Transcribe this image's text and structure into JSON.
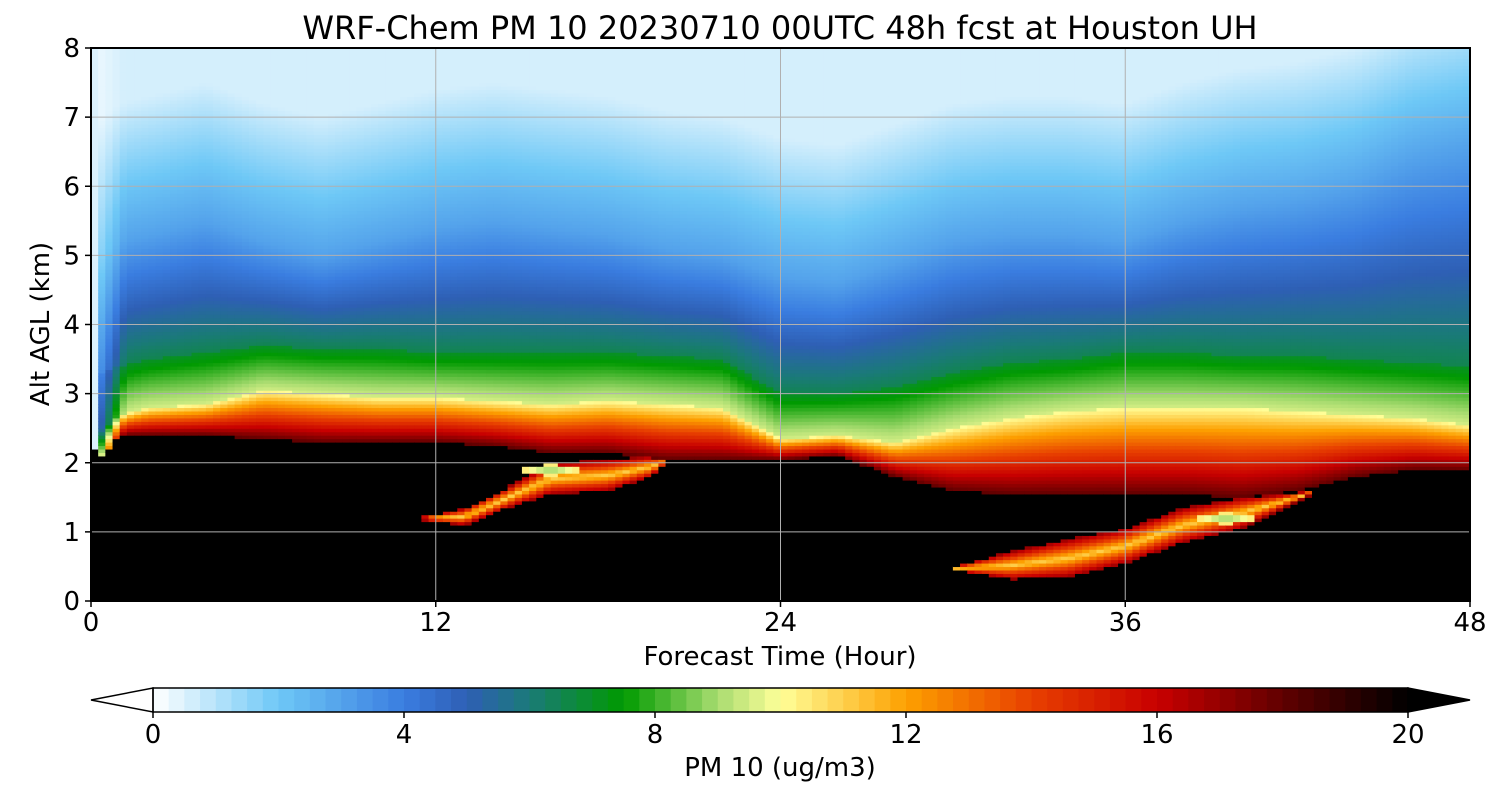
{
  "chart_data": {
    "type": "heatmap",
    "title": "WRF-Chem PM 10  20230710 00UTC 48h fcst at Houston UH",
    "xlabel": "Forecast Time (Hour)",
    "ylabel": "Alt AGL (km)",
    "xlim": [
      0,
      48
    ],
    "ylim": [
      0,
      8
    ],
    "xticks": [
      0,
      12,
      24,
      36,
      48
    ],
    "yticks": [
      0,
      1,
      2,
      3,
      4,
      5,
      6,
      7,
      8
    ],
    "grid": true,
    "colorbar": {
      "label": "PM 10  (ug/m3)",
      "range": [
        0,
        20
      ],
      "ticks": [
        0,
        4,
        8,
        12,
        16,
        20
      ],
      "extend": "both",
      "stops": [
        {
          "value": 0,
          "color": "#ffffff"
        },
        {
          "value": 2,
          "color": "#6ec8f6"
        },
        {
          "value": 4,
          "color": "#3a7de0"
        },
        {
          "value": 5,
          "color": "#2e5fb4"
        },
        {
          "value": 6,
          "color": "#1a7a78"
        },
        {
          "value": 7.5,
          "color": "#009a00"
        },
        {
          "value": 9,
          "color": "#a8dc70"
        },
        {
          "value": 10,
          "color": "#ffff99"
        },
        {
          "value": 12,
          "color": "#fda000"
        },
        {
          "value": 14,
          "color": "#e84000"
        },
        {
          "value": 16,
          "color": "#c80000"
        },
        {
          "value": 18,
          "color": "#600000"
        },
        {
          "value": 20,
          "color": "#000000"
        }
      ]
    },
    "profile_hours": [
      0,
      0.3,
      1,
      2,
      4,
      6,
      8,
      10,
      12,
      14,
      16,
      18,
      20,
      22,
      24,
      26,
      28,
      30,
      32,
      34,
      36,
      38,
      40,
      42,
      44,
      46,
      48
    ],
    "layer_top_km": [
      0,
      2.05,
      2.4,
      2.4,
      2.4,
      2.35,
      2.3,
      2.3,
      2.3,
      2.25,
      2.15,
      2.15,
      2.05,
      2.05,
      2.05,
      2.1,
      1.8,
      1.6,
      1.55,
      1.55,
      1.55,
      1.55,
      1.5,
      1.6,
      1.8,
      1.9,
      1.9
    ],
    "peak_top_km": [
      0,
      2.45,
      2.7,
      2.8,
      2.85,
      3.05,
      3.0,
      2.95,
      2.95,
      2.9,
      2.85,
      2.9,
      2.85,
      2.8,
      2.35,
      2.4,
      2.3,
      2.5,
      2.65,
      2.75,
      2.8,
      2.8,
      2.8,
      2.75,
      2.7,
      2.65,
      2.55
    ],
    "green_top_km": [
      0,
      3.3,
      3.4,
      3.5,
      3.6,
      3.7,
      3.65,
      3.65,
      3.6,
      3.6,
      3.6,
      3.6,
      3.55,
      3.5,
      3.0,
      3.0,
      3.1,
      3.3,
      3.45,
      3.5,
      3.6,
      3.6,
      3.55,
      3.55,
      3.5,
      3.45,
      3.4
    ],
    "blue_top_km": [
      0,
      5.0,
      5.2,
      5.3,
      5.5,
      5.2,
      5.0,
      5.2,
      5.4,
      5.5,
      5.4,
      5.3,
      5.1,
      5.0,
      4.7,
      4.6,
      4.9,
      5.2,
      5.3,
      5.3,
      5.2,
      5.5,
      5.7,
      5.8,
      6.0,
      6.4,
      6.6
    ],
    "lower_plume": [
      {
        "hour": 11.5,
        "bottom_km": 1.18,
        "top_km": 1.22
      },
      {
        "hour": 13,
        "bottom_km": 1.1,
        "top_km": 1.35
      },
      {
        "hour": 14.5,
        "bottom_km": 1.35,
        "top_km": 1.65
      },
      {
        "hour": 16,
        "bottom_km": 1.55,
        "top_km": 2.0
      },
      {
        "hour": 18,
        "bottom_km": 1.6,
        "top_km": 2.05
      },
      {
        "hour": 19.5,
        "bottom_km": 1.8,
        "top_km": 2.1
      },
      {
        "hour": 20,
        "bottom_km": 2.0,
        "top_km": 2.05
      }
    ],
    "deep_plume": [
      {
        "hour": 30,
        "bottom_km": 0.45,
        "top_km": 0.5
      },
      {
        "hour": 32,
        "bottom_km": 0.32,
        "top_km": 0.72
      },
      {
        "hour": 34,
        "bottom_km": 0.35,
        "top_km": 0.9
      },
      {
        "hour": 36,
        "bottom_km": 0.55,
        "top_km": 1.05
      },
      {
        "hour": 38,
        "bottom_km": 0.85,
        "top_km": 1.35
      },
      {
        "hour": 40,
        "bottom_km": 1.05,
        "top_km": 1.5
      },
      {
        "hour": 41.5,
        "bottom_km": 1.35,
        "top_km": 1.55
      },
      {
        "hour": 42.5,
        "bottom_km": 1.55,
        "top_km": 1.6
      }
    ],
    "local_minima": [
      {
        "hour": 16,
        "alt_km": 1.9
      },
      {
        "hour": 39.5,
        "alt_km": 1.2
      }
    ]
  }
}
